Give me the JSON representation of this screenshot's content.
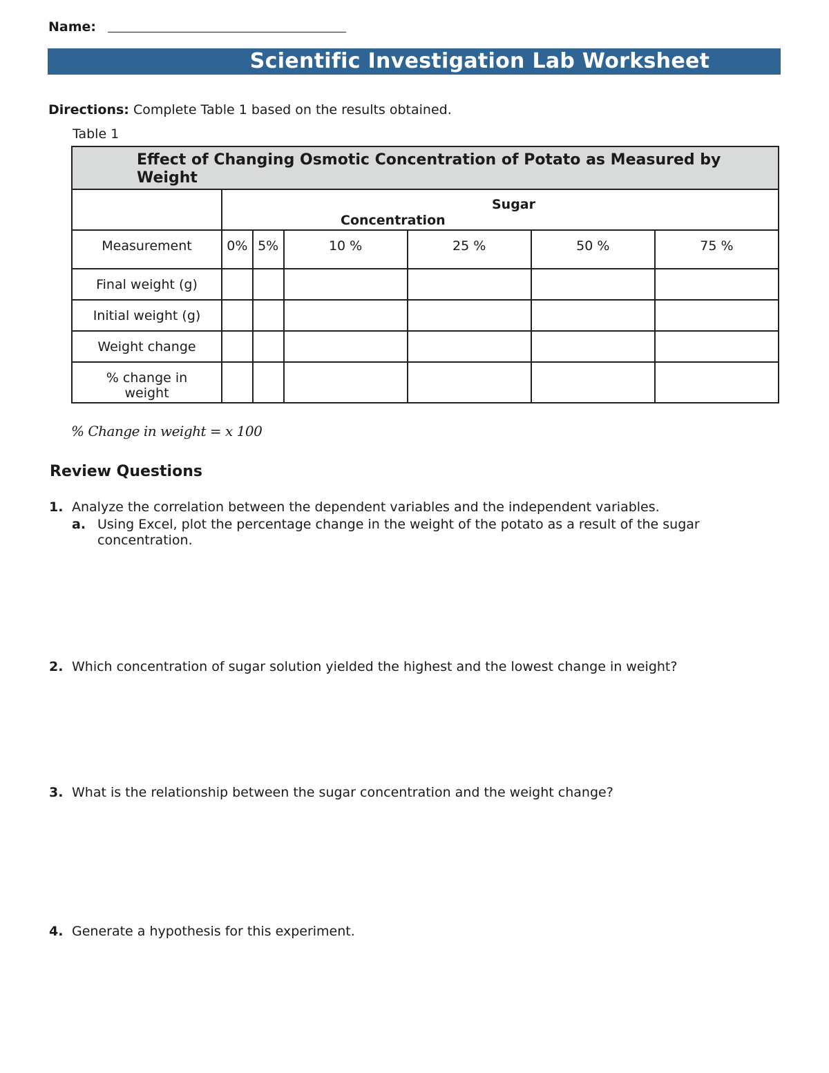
{
  "header": {
    "name_label": "Name:",
    "title": "Scientific Investigation Lab Worksheet",
    "banner_color": "#2e6594"
  },
  "directions": {
    "label": "Directions:",
    "text": "Complete Table 1 based on the results obtained."
  },
  "table": {
    "caption": "Table 1",
    "title": "Effect of Changing Osmotic Concentration of Potato as Measured by Weight",
    "group_header_line1": "Sugar",
    "group_header_line2": "Concentration",
    "columns": [
      "Measurement",
      "0%",
      "5%",
      "10 %",
      "25 %",
      "50 %",
      "75 %"
    ],
    "rows": [
      "Final weight (g)",
      "Initial weight (g)",
      "Weight change",
      "% change in weight"
    ]
  },
  "formula": "% Change in weight = x 100",
  "review": {
    "heading": "Review Questions",
    "questions": [
      {
        "num": "1.",
        "text": "Analyze the correlation between the dependent variables and the independent variables."
      },
      {
        "num": "a.",
        "text": "Using Excel, plot the percentage change in the weight of the potato as a result of the sugar concentration."
      },
      {
        "num": "2.",
        "text": "Which concentration of sugar solution yielded the highest and the lowest change in weight?"
      },
      {
        "num": "3.",
        "text": "What is the relationship between the sugar concentration and the weight change?"
      },
      {
        "num": "4.",
        "text": "Generate a hypothesis for this experiment."
      }
    ]
  }
}
